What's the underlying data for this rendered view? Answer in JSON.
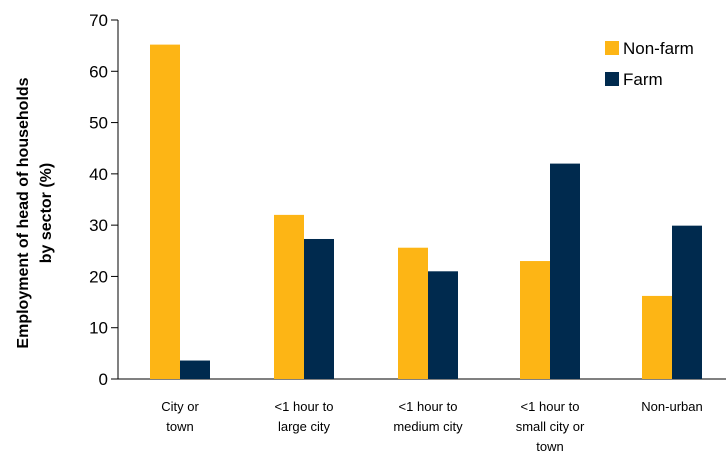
{
  "chart_data": {
    "type": "bar",
    "ylabel_lines": [
      "Employment of head of households",
      "by sector (%)"
    ],
    "xlabel": "",
    "ylim": [
      0,
      70
    ],
    "yticks": [
      0,
      10,
      20,
      30,
      40,
      50,
      60,
      70
    ],
    "grid": false,
    "legend_position": "top-right",
    "categories": [
      [
        "City or",
        "town"
      ],
      [
        "<1 hour to",
        "large city"
      ],
      [
        "<1 hour to",
        "medium city"
      ],
      [
        "<1 hour to",
        "small city or",
        "town"
      ],
      [
        "Non-urban"
      ]
    ],
    "series": [
      {
        "name": "Non-farm",
        "color": "#FDB515",
        "values": [
          65.2,
          32.0,
          25.6,
          23.0,
          16.2
        ]
      },
      {
        "name": "Farm",
        "color": "#002A4E",
        "values": [
          3.6,
          27.3,
          21.0,
          42.0,
          29.9
        ]
      }
    ]
  }
}
